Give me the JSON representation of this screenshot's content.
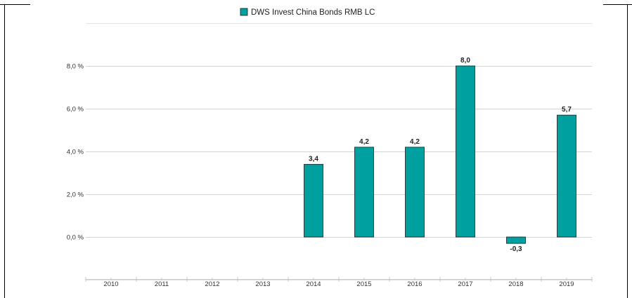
{
  "chart_data": {
    "type": "bar",
    "categories": [
      "2010",
      "2011",
      "2012",
      "2013",
      "2014",
      "2015",
      "2016",
      "2017",
      "2018",
      "2019"
    ],
    "series": [
      {
        "name": "DWS Invest China Bonds  RMB LC",
        "values": [
          null,
          null,
          null,
          null,
          3.4,
          4.2,
          4.2,
          8.0,
          -0.3,
          5.7
        ],
        "color": "#00a0a0"
      }
    ],
    "data_labels": [
      "",
      "",
      "",
      "",
      "3,4",
      "4,2",
      "4,2",
      "8,0",
      "-0,3",
      "5,7"
    ],
    "y_ticks": [
      0,
      2,
      4,
      6,
      8
    ],
    "y_tick_labels": [
      "0,0 %",
      "2,0 %",
      "4,0 %",
      "6,0 %",
      "8,0 %"
    ],
    "ylim": [
      -2,
      10
    ],
    "grid": true,
    "legend_position": "top-center",
    "title": "",
    "xlabel": "",
    "ylabel": ""
  }
}
